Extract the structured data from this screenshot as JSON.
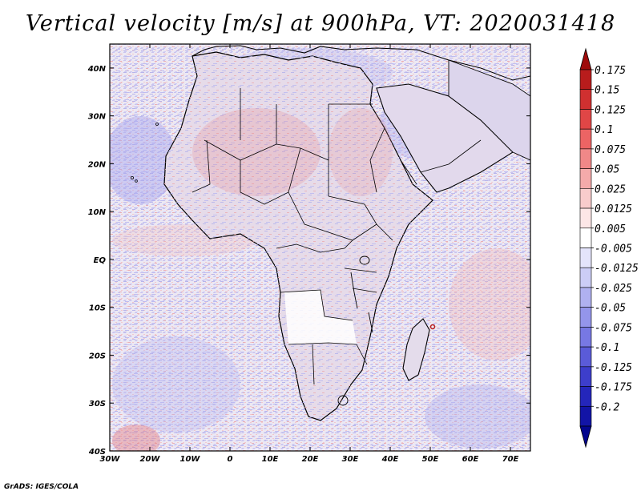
{
  "title": "Vertical velocity [m/s] at 900hPa, VT: 2020031418",
  "footer": "GrADS: IGES/COLA",
  "map": {
    "lon_range": [
      -30,
      75
    ],
    "lat_range": [
      -40,
      45
    ],
    "lat_ticks": [
      {
        "lat": 40,
        "label": "40N"
      },
      {
        "lat": 30,
        "label": "30N"
      },
      {
        "lat": 20,
        "label": "20N"
      },
      {
        "lat": 10,
        "label": "10N"
      },
      {
        "lat": 0,
        "label": "EQ"
      },
      {
        "lat": -10,
        "label": "10S"
      },
      {
        "lat": -20,
        "label": "20S"
      },
      {
        "lat": -30,
        "label": "30S"
      },
      {
        "lat": -40,
        "label": "40S"
      }
    ],
    "lon_ticks": [
      {
        "lon": -30,
        "label": "30W"
      },
      {
        "lon": -20,
        "label": "20W"
      },
      {
        "lon": -10,
        "label": "10W"
      },
      {
        "lon": 0,
        "label": "0"
      },
      {
        "lon": 10,
        "label": "10E"
      },
      {
        "lon": 20,
        "label": "20E"
      },
      {
        "lon": 30,
        "label": "30E"
      },
      {
        "lon": 40,
        "label": "40E"
      },
      {
        "lon": 50,
        "label": "50E"
      },
      {
        "lon": 60,
        "label": "60E"
      },
      {
        "lon": 70,
        "label": "70E"
      }
    ]
  },
  "colorbar": {
    "colors": [
      "#9e0a0a",
      "#b81c1c",
      "#d03030",
      "#e04646",
      "#ec6464",
      "#f08888",
      "#f4aaaa",
      "#f8cccc",
      "#fde6e6",
      "#ffffff",
      "#e4e4fb",
      "#cccdf6",
      "#b0b1f0",
      "#9495eb",
      "#7778e3",
      "#5a5bd8",
      "#3d3ecb",
      "#2426bb",
      "#1214a6",
      "#04068e"
    ],
    "labels": [
      "0.175",
      "0.15",
      "0.125",
      "0.1",
      "0.075",
      "0.05",
      "0.025",
      "0.0125",
      "0.005",
      "-0.005",
      "-0.0125",
      "-0.025",
      "-0.05",
      "-0.075",
      "-0.1",
      "-0.125",
      "-0.175",
      "-0.2"
    ]
  }
}
